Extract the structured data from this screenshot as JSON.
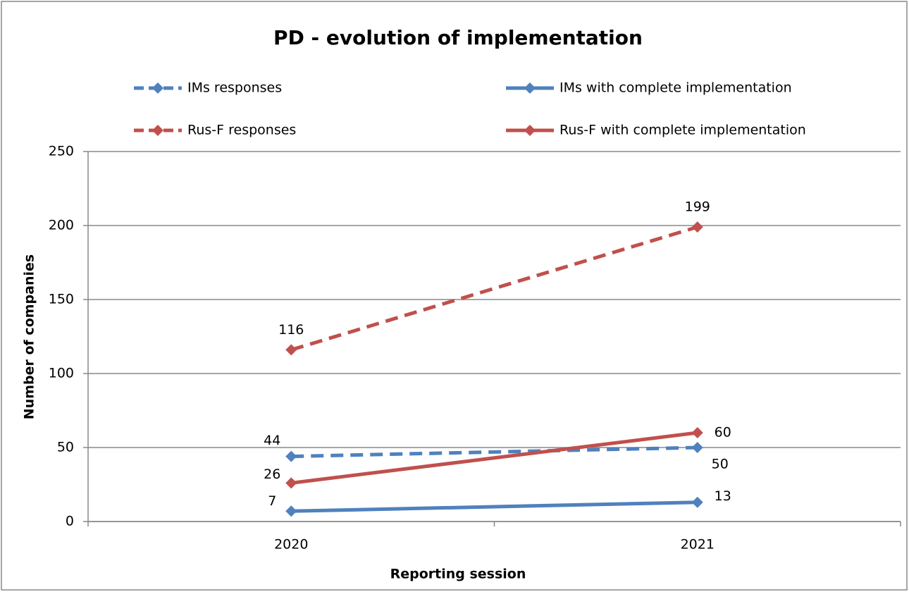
{
  "chart_data": {
    "type": "line",
    "title": "PD - evolution of implementation",
    "x_label": "Reporting session",
    "y_label": "Number of companies",
    "categories": [
      "2020",
      "2021"
    ],
    "series": [
      {
        "name": "IMs responses",
        "color": "#4f81bd",
        "line_style": "dashed",
        "values": [
          44,
          50
        ]
      },
      {
        "name": "IMs with complete implementation",
        "color": "#4f81bd",
        "line_style": "solid",
        "values": [
          7,
          13
        ]
      },
      {
        "name": "Rus-F responses",
        "color": "#c0504d",
        "line_style": "dashed",
        "values": [
          116,
          199
        ]
      },
      {
        "name": "Rus-F with complete implementation",
        "color": "#c0504d",
        "line_style": "solid",
        "values": [
          26,
          60
        ]
      }
    ],
    "ylim": [
      0,
      250
    ],
    "yticks": [
      0,
      50,
      100,
      150,
      200,
      250
    ],
    "grid": true,
    "legend": "top"
  }
}
